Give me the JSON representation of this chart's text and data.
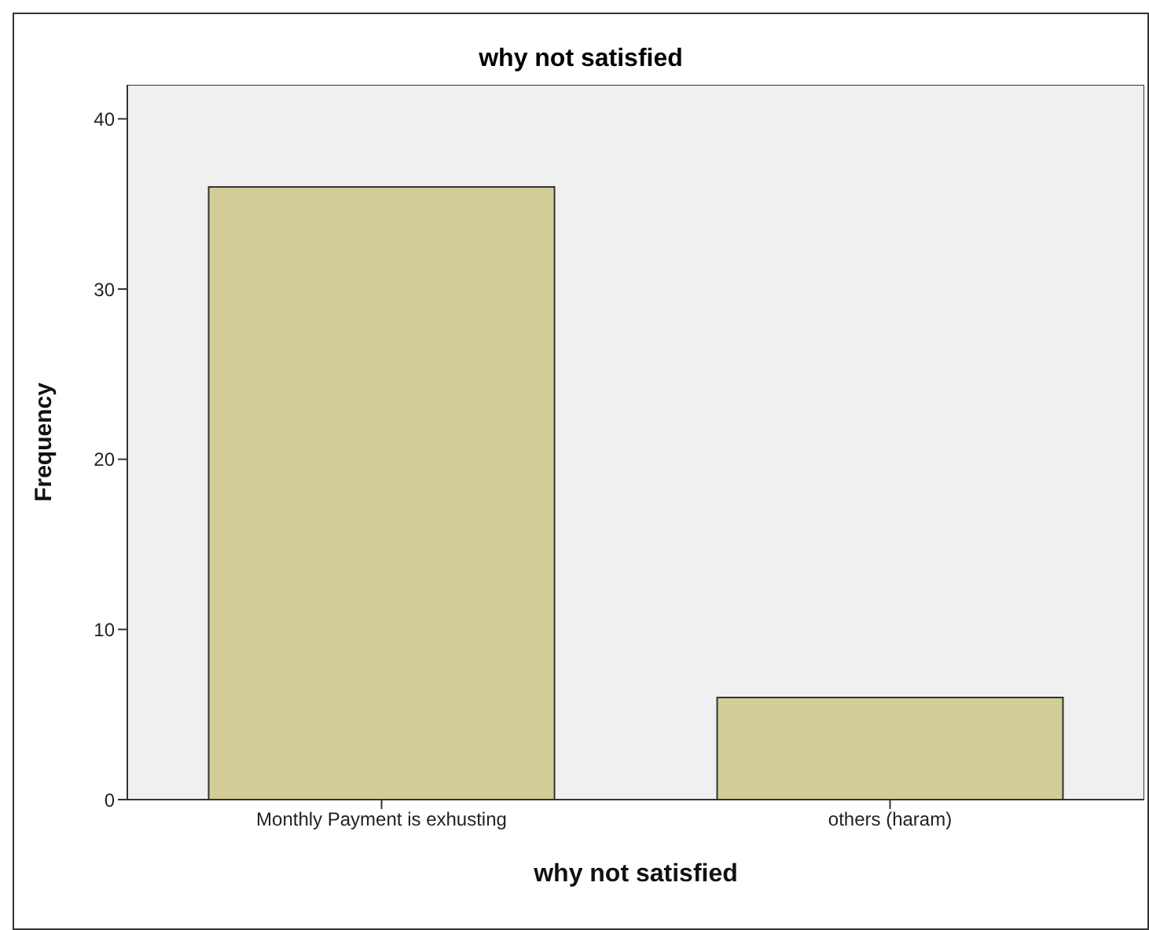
{
  "chart_data": {
    "type": "bar",
    "title": "why not satisfied",
    "xlabel": "why not satisfied",
    "ylabel": "Frequency",
    "categories": [
      "Monthly Payment is exhusting",
      "others (haram)"
    ],
    "values": [
      36,
      6
    ],
    "color": "#d3ce97",
    "ylim": [
      0,
      42
    ],
    "yticks": [
      0,
      10,
      20,
      30,
      40
    ]
  }
}
